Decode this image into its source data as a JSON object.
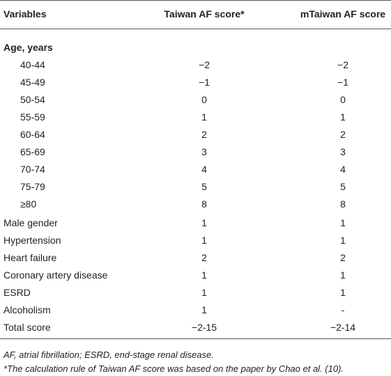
{
  "table": {
    "header": [
      "Variables",
      "Taiwan AF score*",
      "mTaiwan AF score"
    ],
    "age": {
      "label": "Age, years",
      "rows": [
        [
          "40-44",
          "−2",
          "−2"
        ],
        [
          "45-49",
          "−1",
          "−1"
        ],
        [
          "50-54",
          "0",
          "0"
        ],
        [
          "55-59",
          "1",
          "1"
        ],
        [
          "60-64",
          "2",
          "2"
        ],
        [
          "65-69",
          "3",
          "3"
        ],
        [
          "70-74",
          "4",
          "4"
        ],
        [
          "75-79",
          "5",
          "5"
        ],
        [
          "≥80",
          "8",
          "8"
        ]
      ]
    },
    "rows": [
      [
        "Male gender",
        "1",
        "1"
      ],
      [
        "Hypertension",
        "1",
        "1"
      ],
      [
        "Heart failure",
        "2",
        "2"
      ],
      [
        "Coronary artery disease",
        "1",
        "1"
      ],
      [
        "ESRD",
        "1",
        "1"
      ],
      [
        "Alcoholism",
        "1",
        "-"
      ],
      [
        "Total score",
        "−2-15",
        "−2-14"
      ]
    ]
  },
  "footnotes": [
    "AF, atrial fibrillation; ESRD, end-stage renal disease.",
    "*The calculation rule of Taiwan AF score was based on the paper by Chao et al. (10)."
  ]
}
